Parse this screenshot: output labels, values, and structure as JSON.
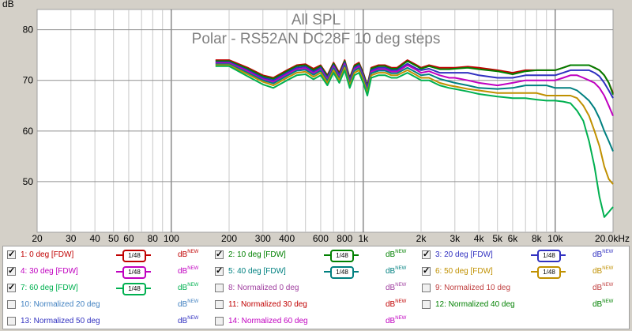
{
  "chart_data": {
    "type": "line",
    "title": "All SPL",
    "subtitle": "Polar - RS52AN DC28F 10 deg steps",
    "ylabel": "dB",
    "xlabel": "",
    "xscale": "log",
    "xlim": [
      20,
      20000
    ],
    "ylim": [
      40,
      84
    ],
    "grid": true,
    "x_ticks": [
      "20",
      "30",
      "40",
      "50",
      "60",
      "80",
      "100",
      "200",
      "300",
      "400",
      "600",
      "800",
      "1k",
      "2k",
      "3k",
      "4k",
      "5k",
      "6k",
      "8k",
      "10k",
      "20.0kHz"
    ],
    "x_tick_values": [
      20,
      30,
      40,
      50,
      60,
      80,
      100,
      200,
      300,
      400,
      600,
      800,
      1000,
      2000,
      3000,
      4000,
      5000,
      6000,
      8000,
      10000,
      20000
    ],
    "y_ticks": [
      "50",
      "60",
      "70",
      "80"
    ],
    "y_tick_values": [
      50,
      60,
      70,
      80
    ],
    "x": [
      170,
      200,
      250,
      300,
      340,
      400,
      450,
      500,
      550,
      600,
      650,
      700,
      750,
      800,
      850,
      900,
      950,
      1000,
      1050,
      1100,
      1200,
      1300,
      1400,
      1500,
      1700,
      1900,
      2000,
      2200,
      2500,
      2800,
      3000,
      3500,
      4000,
      5000,
      6000,
      7000,
      8000,
      9000,
      10000,
      11000,
      12000,
      13000,
      14000,
      15000,
      16000,
      17000,
      18000,
      19000,
      20000
    ],
    "series": [
      {
        "name": "1: 0 deg [FDW]",
        "color": "#c00000",
        "values": [
          74,
          74,
          72.5,
          71,
          70.5,
          72,
          73,
          73.2,
          72.3,
          73,
          71,
          73.5,
          71.5,
          74,
          70.5,
          73,
          73.5,
          71.5,
          69,
          72.5,
          73,
          73,
          72.5,
          72.5,
          74,
          73,
          72.5,
          73,
          72.5,
          72.5,
          72.5,
          72.7,
          72.5,
          72,
          71.5,
          72,
          72,
          72,
          72,
          72.5,
          73,
          73,
          73,
          73,
          72.5,
          72,
          71,
          69.5,
          67.5
        ]
      },
      {
        "name": "2: 10 deg [FDW]",
        "color": "#008000",
        "values": [
          73.8,
          73.8,
          72.3,
          70.8,
          70.3,
          71.8,
          72.8,
          73,
          72,
          72.8,
          70.8,
          73.3,
          71.2,
          73.8,
          70.3,
          72.8,
          73.3,
          71.3,
          68.8,
          72.3,
          72.8,
          72.8,
          72.3,
          72.3,
          73.8,
          72.8,
          72.3,
          72.8,
          72.2,
          72.2,
          72.3,
          72.5,
          72.2,
          71.8,
          71.2,
          71.8,
          72,
          72,
          72,
          72.5,
          73,
          73,
          73,
          73,
          72.5,
          72,
          71,
          69.5,
          67.2
        ]
      },
      {
        "name": "3: 20 deg [FDW]",
        "color": "#3030c0",
        "values": [
          73.6,
          73.6,
          72,
          70.5,
          70,
          71.5,
          72.5,
          72.7,
          71.7,
          72.5,
          70.5,
          73,
          71,
          73.5,
          70,
          72.5,
          73,
          71,
          68.5,
          72,
          72.5,
          72.5,
          72,
          72,
          73.3,
          72.3,
          72,
          72.3,
          71.5,
          71.5,
          71.5,
          71.5,
          71,
          70.5,
          70.5,
          71,
          71,
          71,
          71,
          71.5,
          72,
          72,
          72,
          72,
          71.5,
          70.8,
          69.5,
          68,
          66.5
        ]
      },
      {
        "name": "4: 30 deg [FDW]",
        "color": "#c000c0",
        "values": [
          73.4,
          73.4,
          71.8,
          70.2,
          69.7,
          71.2,
          72.2,
          72.4,
          71.4,
          72.2,
          70.2,
          72.7,
          70.7,
          73.2,
          69.7,
          72.2,
          72.7,
          70.7,
          68.2,
          71.7,
          72.2,
          72.2,
          71.7,
          71.7,
          73,
          72,
          71.5,
          71.8,
          71,
          70.5,
          70.5,
          70,
          69.5,
          69,
          69.5,
          70,
          70,
          70,
          70,
          70.5,
          71,
          71,
          70.5,
          70,
          69.5,
          68.5,
          67,
          65,
          63
        ]
      },
      {
        "name": "5: 40 deg [FDW]",
        "color": "#008080",
        "values": [
          73.2,
          73.2,
          71.5,
          70,
          69.4,
          70.9,
          71.9,
          72.1,
          71.1,
          71.9,
          69.9,
          72.4,
          70.4,
          72.9,
          69.4,
          71.9,
          72.4,
          70.4,
          67.9,
          71.4,
          71.9,
          71.9,
          71.4,
          71.4,
          72.5,
          71.5,
          71,
          71.2,
          70.3,
          69.8,
          69.5,
          69,
          68.5,
          68.3,
          68.5,
          69,
          69,
          69,
          68.5,
          68.5,
          68.5,
          68,
          67,
          66,
          64.5,
          62.5,
          60,
          58,
          56
        ]
      },
      {
        "name": "6: 50 deg [FDW]",
        "color": "#c09000",
        "values": [
          73,
          73,
          71.2,
          69.7,
          69,
          70.5,
          71.5,
          71.7,
          70.7,
          71.5,
          69.5,
          72,
          70,
          72.5,
          69,
          71.5,
          72,
          70,
          67.5,
          71,
          71.5,
          71.5,
          71,
          71,
          72,
          71,
          70.5,
          70.5,
          69.5,
          69,
          68.8,
          68.3,
          68,
          67.5,
          67.5,
          67.5,
          67.5,
          67,
          67,
          67,
          67,
          66.5,
          65,
          63,
          60,
          57,
          53,
          50.5,
          49.5
        ]
      },
      {
        "name": "7: 60 deg [FDW]",
        "color": "#00b050",
        "values": [
          72.8,
          72.8,
          70.8,
          69.2,
          68.5,
          70,
          71,
          71.2,
          70.2,
          71,
          69,
          71.5,
          69.5,
          72,
          68.5,
          71,
          71.5,
          69.5,
          67,
          70.5,
          71,
          71,
          70.5,
          70.5,
          71.5,
          70.5,
          70,
          70,
          69,
          68.5,
          68.3,
          67.8,
          67.3,
          66.8,
          66.5,
          66.5,
          66.2,
          66,
          66,
          65.8,
          65.5,
          64,
          62,
          58,
          53,
          47,
          43,
          44,
          45
        ]
      }
    ]
  },
  "legend": {
    "items": [
      {
        "label": "1: 0 deg [FDW]",
        "color": "#c00000",
        "checked": true,
        "smoothing": "1/48",
        "unit": "dB",
        "unit_sup": "NEW",
        "unit_color": "#c00000"
      },
      {
        "label": "2: 10 deg [FDW]",
        "color": "#008000",
        "checked": true,
        "smoothing": "1/48",
        "unit": "dB",
        "unit_sup": "NEW",
        "unit_color": "#008000"
      },
      {
        "label": "3: 20 deg [FDW]",
        "color": "#3030c0",
        "checked": true,
        "smoothing": "1/48",
        "unit": "dB",
        "unit_sup": "NEW",
        "unit_color": "#3030c0"
      },
      {
        "label": "4: 30 deg [FDW]",
        "color": "#c000c0",
        "checked": true,
        "smoothing": "1/48",
        "unit": "dB",
        "unit_sup": "NEW",
        "unit_color": "#c000c0"
      },
      {
        "label": "5: 40 deg [FDW]",
        "color": "#008080",
        "checked": true,
        "smoothing": "1/48",
        "unit": "dB",
        "unit_sup": "NEW",
        "unit_color": "#008080"
      },
      {
        "label": "6: 50 deg [FDW]",
        "color": "#c09000",
        "checked": true,
        "smoothing": "1/48",
        "unit": "dB",
        "unit_sup": "NEW",
        "unit_color": "#c09000"
      },
      {
        "label": "7: 60 deg [FDW]",
        "color": "#00b050",
        "checked": true,
        "smoothing": "1/48",
        "unit": "dB",
        "unit_sup": "NEW",
        "unit_color": "#00b050"
      },
      {
        "label": "8: Normalized 0 deg",
        "color": "#a040a0",
        "checked": false,
        "smoothing": "",
        "unit": "dB",
        "unit_sup": "NEW",
        "unit_color": "#a040a0"
      },
      {
        "label": "9: Normalized 10 deg",
        "color": "#c04040",
        "checked": false,
        "smoothing": "",
        "unit": "dB",
        "unit_sup": "NEW",
        "unit_color": "#c04040"
      },
      {
        "label": "10: Normalized 20 deg",
        "color": "#4080c0",
        "checked": false,
        "smoothing": "",
        "unit": "dB",
        "unit_sup": "NEW",
        "unit_color": "#4080c0"
      },
      {
        "label": "11: Normalized 30 deg",
        "color": "#c00000",
        "checked": false,
        "smoothing": "",
        "unit": "dB",
        "unit_sup": "NEW",
        "unit_color": "#c00000"
      },
      {
        "label": "12: Normalized 40 deg",
        "color": "#008000",
        "checked": false,
        "smoothing": "",
        "unit": "dB",
        "unit_sup": "NEW",
        "unit_color": "#008000"
      },
      {
        "label": "13: Normalized 50 deg",
        "color": "#3030c0",
        "checked": false,
        "smoothing": "",
        "unit": "dB",
        "unit_sup": "NEW",
        "unit_color": "#3030c0"
      },
      {
        "label": "14: Normalized 60 deg",
        "color": "#c000c0",
        "checked": false,
        "smoothing": "",
        "unit": "dB",
        "unit_sup": "NEW",
        "unit_color": "#c000c0"
      }
    ]
  }
}
